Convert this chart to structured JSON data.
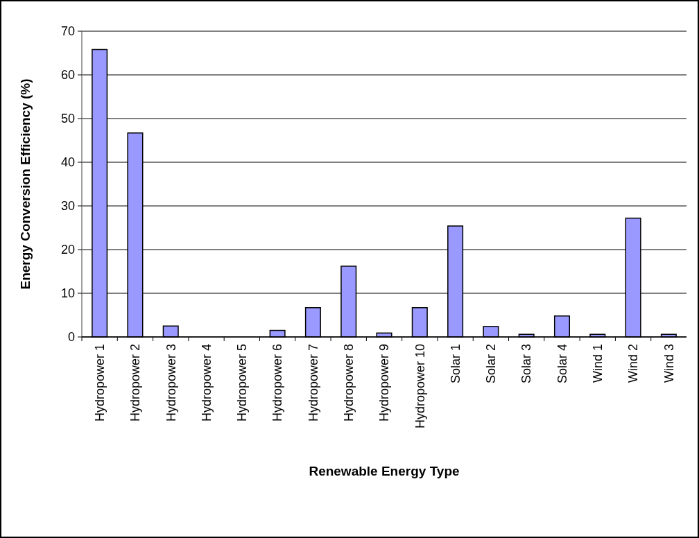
{
  "chart_data": {
    "type": "bar",
    "xlabel": "Renewable Energy Type",
    "ylabel": "Energy Conversion Efficiency (%)",
    "categories": [
      "Hydropower 1",
      "Hydropower 2",
      "Hydropower 3",
      "Hydropower 4",
      "Hydropower 5",
      "Hydropower 6",
      "Hydropower 7",
      "Hydropower 8",
      "Hydropower 9",
      "Hydropower 10",
      "Solar 1",
      "Solar 2",
      "Solar 3",
      "Solar 4",
      "Wind 1",
      "Wind 2",
      "Wind 3"
    ],
    "values": [
      65.8,
      46.7,
      2.5,
      0,
      0,
      1.5,
      6.7,
      16.2,
      0.9,
      6.7,
      25.4,
      2.4,
      0.6,
      4.8,
      0.6,
      27.2,
      0.6
    ],
    "color": "#9999ff",
    "ylim": [
      0,
      70
    ],
    "yticks": [
      0,
      10,
      20,
      30,
      40,
      50,
      60,
      70
    ],
    "grid": "y"
  }
}
